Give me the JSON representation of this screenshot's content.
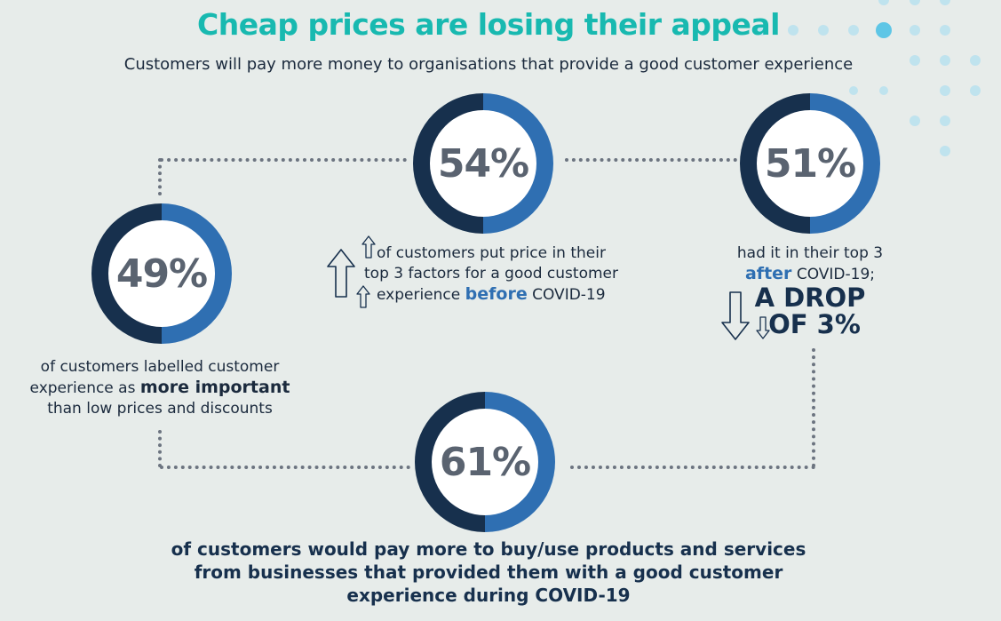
{
  "header": {
    "title": "Cheap prices are losing their appeal",
    "subtitle": "Customers will pay more money to organisations that provide a good customer experience"
  },
  "stats": {
    "stat_49": {
      "value": "49%",
      "line1": "of customers labelled customer",
      "line2_pre": "experience as ",
      "line2_bold": "more important",
      "line3": "than low prices and discounts"
    },
    "stat_54": {
      "value": "54%",
      "line1": "of customers put price in their",
      "line2": "top 3 factors for a good customer",
      "line3_pre": "experience ",
      "line3_bold": "before",
      "line3_post": " COVID-19"
    },
    "stat_51": {
      "value": "51%",
      "line1": "had it in their top 3",
      "line2_bold": "after",
      "line2_post": " COVID-19;",
      "drop_line1": "A DROP",
      "drop_line2": "OF 3%"
    },
    "stat_61": {
      "value": "61%",
      "line1": "of customers would pay more to buy/use products and services",
      "line2": "from businesses that provided them with a good customer",
      "line3": "experience during COVID-19"
    }
  },
  "colors": {
    "title_teal": "#18b9b0",
    "ring_blue": "#2f6fb2",
    "ring_navy": "#17304d",
    "background": "#e7ecea"
  },
  "icons": [
    "arrow-up-icon",
    "arrow-down-icon",
    "decorative-dot-pattern"
  ]
}
